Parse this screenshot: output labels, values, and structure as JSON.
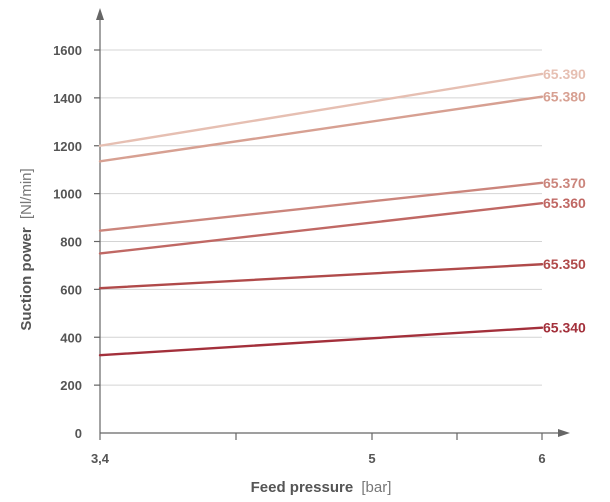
{
  "chart_data": {
    "type": "line",
    "xlabel": "Feed pressure",
    "xlabel_unit": "[bar]",
    "ylabel": "Suction power",
    "ylabel_unit": "[Nl/min]",
    "x_ticks": [
      {
        "value": 3.4,
        "label": "3,4"
      },
      {
        "value": 5,
        "label": "5"
      },
      {
        "value": 6,
        "label": "6"
      }
    ],
    "x_minor_ticks": [
      4.2,
      5.5
    ],
    "y_ticks": [
      0,
      200,
      400,
      600,
      800,
      1000,
      1200,
      1400,
      1600
    ],
    "xlim": [
      3.4,
      6
    ],
    "ylim": [
      0,
      1600
    ],
    "grid": true,
    "series": [
      {
        "name": "65.390",
        "color": "#e6bfb2",
        "x": [
          3.4,
          6
        ],
        "y": [
          1200,
          1500
        ]
      },
      {
        "name": "65.380",
        "color": "#d7a092",
        "x": [
          3.4,
          6
        ],
        "y": [
          1135,
          1405
        ]
      },
      {
        "name": "65.370",
        "color": "#cb857c",
        "x": [
          3.4,
          6
        ],
        "y": [
          845,
          1045
        ]
      },
      {
        "name": "65.360",
        "color": "#c06864",
        "x": [
          3.4,
          6
        ],
        "y": [
          750,
          960
        ]
      },
      {
        "name": "65.350",
        "color": "#b04a4a",
        "x": [
          3.4,
          6
        ],
        "y": [
          605,
          705
        ]
      },
      {
        "name": "65.340",
        "color": "#a3303b",
        "x": [
          3.4,
          6
        ],
        "y": [
          325,
          440
        ]
      }
    ]
  }
}
